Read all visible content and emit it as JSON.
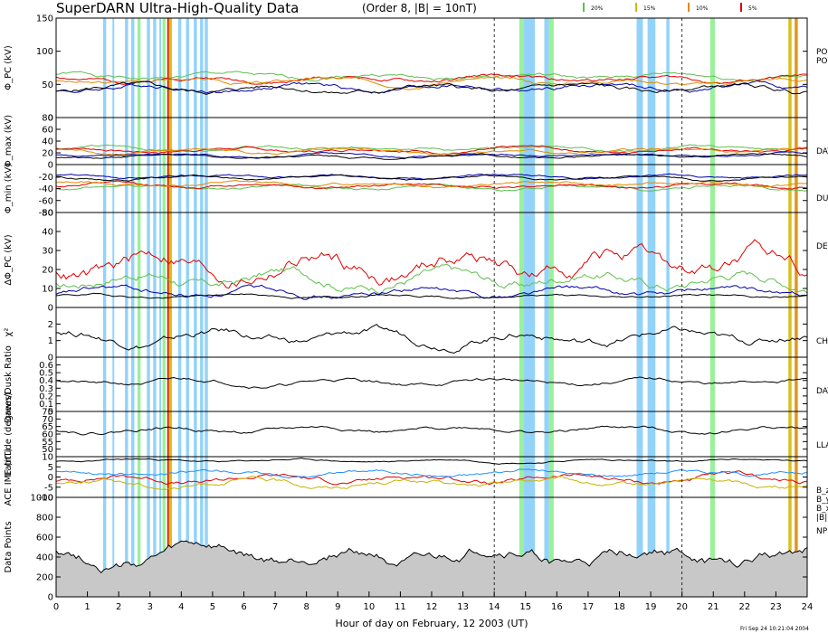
{
  "title": "SuperDARN Ultra-High-Quality Data",
  "subtitle": "(Order 8, |B| = 10nT)",
  "legend": [
    {
      "label": "20%",
      "color": "#5fbf4f"
    },
    {
      "label": "15%",
      "color": "#d4b800"
    },
    {
      "label": "10%",
      "color": "#e08a00"
    },
    {
      "label": "5%",
      "color": "#e00000"
    }
  ],
  "footer_stamp": "Fri Sep 24 10:21:04 2004",
  "chart_data": {
    "type": "line",
    "xlabel": "Hour of day on February, 12 2003 (UT)",
    "xlim": [
      0,
      24
    ],
    "x_ticks": [
      0,
      1,
      2,
      3,
      4,
      5,
      6,
      7,
      8,
      9,
      10,
      11,
      12,
      13,
      14,
      15,
      16,
      17,
      18,
      19,
      20,
      21,
      22,
      23,
      24
    ],
    "markers_dashed": [
      14,
      20
    ],
    "shaded_intervals": [
      {
        "start": 1.5,
        "end": 1.6,
        "color": "#87cefa"
      },
      {
        "start": 1.8,
        "end": 1.85,
        "color": "#87cefa"
      },
      {
        "start": 2.2,
        "end": 2.3,
        "color": "#87cefa"
      },
      {
        "start": 2.4,
        "end": 2.5,
        "color": "#87cefa"
      },
      {
        "start": 2.6,
        "end": 2.7,
        "color": "#90ee90"
      },
      {
        "start": 2.9,
        "end": 3.0,
        "color": "#87cefa"
      },
      {
        "start": 3.1,
        "end": 3.2,
        "color": "#87cefa"
      },
      {
        "start": 3.3,
        "end": 3.35,
        "color": "#87cefa"
      },
      {
        "start": 3.4,
        "end": 3.5,
        "color": "#90ee90"
      },
      {
        "start": 3.55,
        "end": 3.6,
        "color": "#e00000"
      },
      {
        "start": 3.6,
        "end": 3.7,
        "color": "#d4b800"
      },
      {
        "start": 3.9,
        "end": 4.0,
        "color": "#87cefa"
      },
      {
        "start": 4.15,
        "end": 4.25,
        "color": "#87cefa"
      },
      {
        "start": 4.4,
        "end": 4.5,
        "color": "#87cefa"
      },
      {
        "start": 4.6,
        "end": 4.7,
        "color": "#87cefa"
      },
      {
        "start": 4.75,
        "end": 4.85,
        "color": "#87cefa"
      },
      {
        "start": 14.8,
        "end": 14.95,
        "color": "#90ee90"
      },
      {
        "start": 14.95,
        "end": 15.3,
        "color": "#87cefa"
      },
      {
        "start": 15.6,
        "end": 15.75,
        "color": "#87cefa"
      },
      {
        "start": 15.75,
        "end": 15.9,
        "color": "#90ee90"
      },
      {
        "start": 18.55,
        "end": 18.75,
        "color": "#87cefa"
      },
      {
        "start": 18.9,
        "end": 19.15,
        "color": "#87cefa"
      },
      {
        "start": 19.5,
        "end": 19.6,
        "color": "#87cefa"
      },
      {
        "start": 20.9,
        "end": 21.05,
        "color": "#90ee90"
      },
      {
        "start": 23.4,
        "end": 23.5,
        "color": "#d4b800"
      },
      {
        "start": 23.6,
        "end": 23.7,
        "color": "#e08a00"
      }
    ],
    "panels": [
      {
        "id": "phi_pc",
        "ylabel": "Φ_PC (kV)",
        "ylim": [
          0,
          150
        ],
        "ticks": [
          0,
          50,
          100,
          150
        ],
        "right_labels": [
          "PO",
          "PO"
        ],
        "series": [
          {
            "color": "#5fbf4f",
            "base": 62,
            "amp": 10,
            "seed": 1
          },
          {
            "color": "#e00000",
            "base": 58,
            "amp": 10,
            "seed": 2
          },
          {
            "color": "#e08a00",
            "base": 55,
            "amp": 10,
            "seed": 3
          },
          {
            "color": "#0000aa",
            "base": 45,
            "amp": 12,
            "seed": 4
          },
          {
            "color": "#000000",
            "base": 43,
            "amp": 12,
            "seed": 5
          }
        ]
      },
      {
        "id": "phi_max",
        "ylabel": "Φ_max (kV)",
        "ylim": [
          0,
          80
        ],
        "ticks": [
          0,
          20,
          40,
          60,
          80
        ],
        "right_labels": [
          "DAY"
        ],
        "series": [
          {
            "color": "#5fbf4f",
            "base": 28,
            "amp": 8,
            "seed": 6
          },
          {
            "color": "#e00000",
            "base": 25,
            "amp": 8,
            "seed": 7
          },
          {
            "color": "#e08a00",
            "base": 22,
            "amp": 8,
            "seed": 8
          },
          {
            "color": "#0000aa",
            "base": 16,
            "amp": 6,
            "seed": 9
          },
          {
            "color": "#000000",
            "base": 14,
            "amp": 6,
            "seed": 10
          }
        ]
      },
      {
        "id": "phi_min",
        "ylabel": "Φ_min (kV)",
        "ylim": [
          -80,
          0
        ],
        "ticks": [
          -80,
          -60,
          -40,
          -20
        ],
        "right_labels": [
          "DU"
        ],
        "series": [
          {
            "color": "#5fbf4f",
            "base": -38,
            "amp": 8,
            "seed": 11
          },
          {
            "color": "#e00000",
            "base": -35,
            "amp": 8,
            "seed": 12
          },
          {
            "color": "#e08a00",
            "base": -32,
            "amp": 8,
            "seed": 13
          },
          {
            "color": "#0000aa",
            "base": -20,
            "amp": 6,
            "seed": 14
          },
          {
            "color": "#000000",
            "base": -22,
            "amp": 6,
            "seed": 15
          }
        ]
      },
      {
        "id": "dphi_pc",
        "ylabel": "ΔΦ_PC (kV)",
        "ylim": [
          0,
          50
        ],
        "ticks": [
          0,
          10,
          20,
          30,
          40,
          50
        ],
        "right_labels": [
          "DE"
        ],
        "series": [
          {
            "color": "#e00000",
            "base": 22,
            "amp": 14,
            "seed": 16
          },
          {
            "color": "#5fbf4f",
            "base": 15,
            "amp": 9,
            "seed": 17
          },
          {
            "color": "#0000aa",
            "base": 8,
            "amp": 5,
            "seed": 18
          },
          {
            "color": "#000000",
            "base": 6,
            "amp": 2,
            "seed": 19
          }
        ]
      },
      {
        "id": "chi2",
        "ylabel": "χ²",
        "ylim": [
          0,
          3
        ],
        "ticks": [
          0,
          1,
          2
        ],
        "right_labels": [
          "CH"
        ],
        "series": [
          {
            "color": "#000000",
            "base": 1.2,
            "amp": 0.8,
            "seed": 20
          }
        ]
      },
      {
        "id": "dawn_dusk",
        "ylabel": "Dawn/Dusk Ratio",
        "ylim": [
          0,
          0.7
        ],
        "ticks": [
          0.0,
          0.1,
          0.2,
          0.3,
          0.4,
          0.5,
          0.6
        ],
        "right_labels": [
          "DAY"
        ],
        "series": [
          {
            "color": "#000000",
            "base": 0.38,
            "amp": 0.08,
            "seed": 21
          }
        ]
      },
      {
        "id": "latitude",
        "ylabel": "Latitude (degrees)",
        "ylim": [
          45,
          75
        ],
        "ticks": [
          50,
          55,
          60,
          65,
          70,
          75
        ],
        "right_labels": [
          "LLA"
        ],
        "series": [
          {
            "color": "#000000",
            "base": 63,
            "amp": 4,
            "seed": 22
          }
        ]
      },
      {
        "id": "imf",
        "ylabel": "ACE IMF (nT)",
        "ylim": [
          -10,
          10
        ],
        "ticks": [
          -10,
          -5,
          0,
          5,
          10
        ],
        "right_labels": [
          "B_z",
          "B_y",
          "B_x",
          "|B|"
        ],
        "series": [
          {
            "color": "#000000",
            "base": 8,
            "amp": 1.5,
            "seed": 23
          },
          {
            "color": "#e00000",
            "base": -1,
            "amp": 4,
            "seed": 24
          },
          {
            "color": "#c8b400",
            "base": -3,
            "amp": 4,
            "seed": 25
          },
          {
            "color": "#1e90ff",
            "base": 2,
            "amp": 3,
            "seed": 26
          }
        ]
      },
      {
        "id": "data_points",
        "ylabel": "Data Points",
        "ylim": [
          0,
          1000
        ],
        "ticks": [
          0,
          200,
          400,
          600,
          800,
          1000
        ],
        "right_labels": [
          "NP"
        ],
        "series": [
          {
            "color": "#000000",
            "base": 400,
            "amp": 200,
            "seed": 27,
            "fill": "#c8c8c8"
          }
        ]
      }
    ]
  }
}
